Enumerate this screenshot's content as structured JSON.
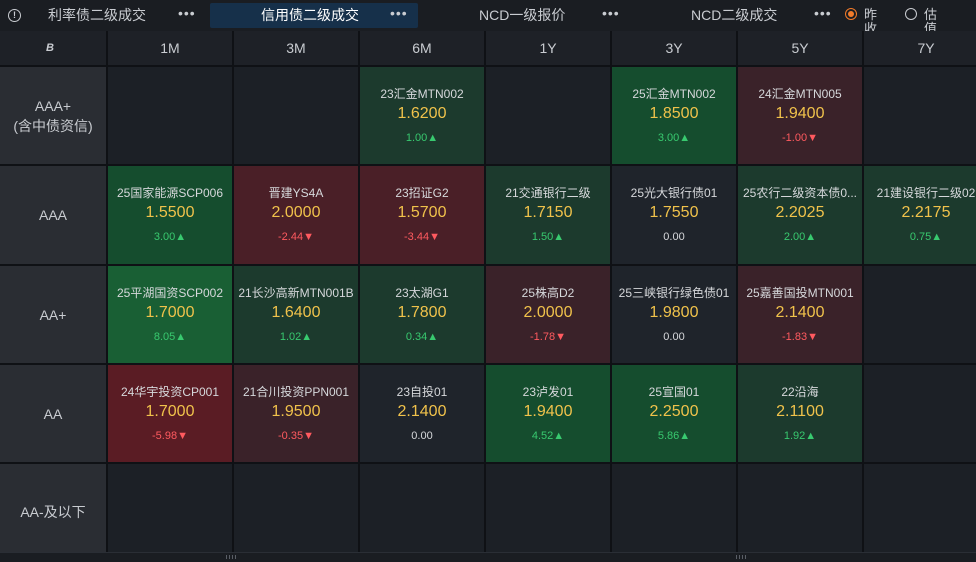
{
  "tabs": [
    {
      "label": "利率债二级成交",
      "more": "•••",
      "active": false
    },
    {
      "label": "信用债二级成交",
      "more": "•••",
      "active": true
    },
    {
      "label": "NCD一级报价",
      "more": "•••",
      "active": false
    },
    {
      "label": "NCD二级成交",
      "more": "•••",
      "active": false
    }
  ],
  "price_mode": {
    "options": [
      {
        "label": "昨收",
        "selected": true
      },
      {
        "label": "估值",
        "selected": false
      }
    ]
  },
  "grid": {
    "corner_icon": "B",
    "columns": [
      "1M",
      "3M",
      "6M",
      "1Y",
      "3Y",
      "5Y",
      "7Y"
    ],
    "rows": [
      {
        "label": "AAA+",
        "sublabel": "(含中债资信)",
        "cells": [
          null,
          null,
          {
            "name": "23汇金MTN002",
            "price": "1.6200",
            "change": "1.00▲",
            "dir": "up",
            "tone": "g1"
          },
          null,
          {
            "name": "25汇金MTN002",
            "price": "1.8500",
            "change": "3.00▲",
            "dir": "up",
            "tone": "g2"
          },
          {
            "name": "24汇金MTN005",
            "price": "1.9400",
            "change": "-1.00▼",
            "dir": "down",
            "tone": "r1"
          },
          null
        ]
      },
      {
        "label": "AAA",
        "sublabel": "",
        "cells": [
          {
            "name": "25国家能源SCP006",
            "price": "1.5500",
            "change": "3.00▲",
            "dir": "up",
            "tone": "g2"
          },
          {
            "name": "晋建YS4A",
            "price": "2.0000",
            "change": "-2.44▼",
            "dir": "down",
            "tone": "r2"
          },
          {
            "name": "23招证G2",
            "price": "1.5700",
            "change": "-3.44▼",
            "dir": "down",
            "tone": "r2"
          },
          {
            "name": "21交通银行二级",
            "price": "1.7150",
            "change": "1.50▲",
            "dir": "up",
            "tone": "g1"
          },
          {
            "name": "25光大银行债01",
            "price": "1.7550",
            "change": "0.00",
            "dir": "flat",
            "tone": "n"
          },
          {
            "name": "25农行二级资本债0...",
            "price": "2.2025",
            "change": "2.00▲",
            "dir": "up",
            "tone": "g1"
          },
          {
            "name": "21建设银行二级02",
            "price": "2.2175",
            "change": "0.75▲",
            "dir": "up",
            "tone": "g1"
          }
        ]
      },
      {
        "label": "AA+",
        "sublabel": "",
        "cells": [
          {
            "name": "25平湖国资SCP002",
            "price": "1.7000",
            "change": "8.05▲",
            "dir": "up",
            "tone": "g3"
          },
          {
            "name": "21长沙高新MTN001B",
            "price": "1.6400",
            "change": "1.02▲",
            "dir": "up",
            "tone": "g1"
          },
          {
            "name": "23太湖G1",
            "price": "1.7800",
            "change": "0.34▲",
            "dir": "up",
            "tone": "g1"
          },
          {
            "name": "25株高D2",
            "price": "2.0000",
            "change": "-1.78▼",
            "dir": "down",
            "tone": "r1"
          },
          {
            "name": "25三峡银行绿色债01",
            "price": "1.9800",
            "change": "0.00",
            "dir": "flat",
            "tone": "n"
          },
          {
            "name": "25嘉善国投MTN001",
            "price": "2.1400",
            "change": "-1.83▼",
            "dir": "down",
            "tone": "r1"
          },
          null
        ]
      },
      {
        "label": "AA",
        "sublabel": "",
        "cells": [
          {
            "name": "24华宇投资CP001",
            "price": "1.7000",
            "change": "-5.98▼",
            "dir": "down",
            "tone": "r3"
          },
          {
            "name": "21合川投资PPN001",
            "price": "1.9500",
            "change": "-0.35▼",
            "dir": "down",
            "tone": "r1"
          },
          {
            "name": "23自投01",
            "price": "2.1400",
            "change": "0.00",
            "dir": "flat",
            "tone": "n"
          },
          {
            "name": "23泸发01",
            "price": "1.9400",
            "change": "4.52▲",
            "dir": "up",
            "tone": "g2"
          },
          {
            "name": "25宣国01",
            "price": "2.2500",
            "change": "5.86▲",
            "dir": "up",
            "tone": "g2"
          },
          {
            "name": "22沿海",
            "price": "2.1100",
            "change": "1.92▲",
            "dir": "up",
            "tone": "g1"
          },
          null
        ]
      },
      {
        "label": "AA-及以下",
        "sublabel": "",
        "cells": [
          null,
          null,
          null,
          null,
          null,
          null,
          null
        ]
      }
    ]
  }
}
